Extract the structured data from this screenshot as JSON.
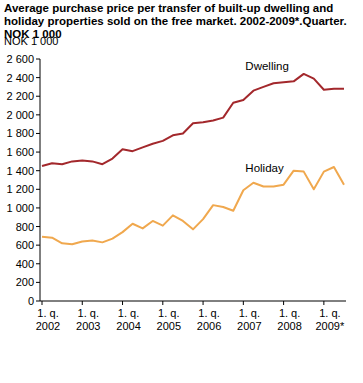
{
  "chart_data": {
    "type": "line",
    "title": "Average purchase price per transfer of built-up dwelling and holiday properties sold on the free market. 2002-2009*.Quarter. NOK 1 000",
    "y_label": "NOK 1 000",
    "categories": [
      "1. q. 2002",
      null,
      null,
      null,
      "1. q. 2003",
      null,
      null,
      null,
      "1. q. 2004",
      null,
      null,
      null,
      "1. q. 2005",
      null,
      null,
      null,
      "1. q. 2006",
      null,
      null,
      null,
      "1. q. 2007",
      null,
      null,
      null,
      "1. q. 2008",
      null,
      null,
      null,
      "1. q. 2009*",
      null,
      null
    ],
    "series": [
      {
        "name": "Dwelling",
        "color": "#a3282c",
        "values": [
          1450,
          1480,
          1470,
          1500,
          1510,
          1500,
          1470,
          1530,
          1630,
          1610,
          1650,
          1690,
          1720,
          1780,
          1800,
          1910,
          1920,
          1940,
          1970,
          2130,
          2160,
          2260,
          2300,
          2340,
          2350,
          2360,
          2440,
          2390,
          2270,
          2280,
          2280
        ]
      },
      {
        "name": "Holiday",
        "color": "#f0a84e",
        "values": [
          690,
          680,
          620,
          610,
          640,
          650,
          630,
          670,
          740,
          830,
          780,
          860,
          810,
          920,
          860,
          770,
          880,
          1030,
          1010,
          970,
          1190,
          1270,
          1230,
          1230,
          1250,
          1400,
          1390,
          1200,
          1390,
          1440,
          1250
        ]
      }
    ],
    "ylim": [
      0,
      2600
    ],
    "yticks": [
      0,
      200,
      400,
      600,
      800,
      {
        "value": 1000,
        "label": "1 000"
      },
      {
        "value": 1200,
        "label": "1 200"
      },
      {
        "value": 1400,
        "label": "1 400"
      },
      {
        "value": 1600,
        "label": "1 600"
      },
      {
        "value": 1800,
        "label": "1 800"
      },
      {
        "value": 2000,
        "label": "2 000"
      },
      {
        "value": 2200,
        "label": "2 200"
      },
      {
        "value": 2400,
        "label": "2 400"
      },
      {
        "value": 2600,
        "label": "2 600"
      }
    ],
    "grid": false,
    "legend": "inline"
  }
}
